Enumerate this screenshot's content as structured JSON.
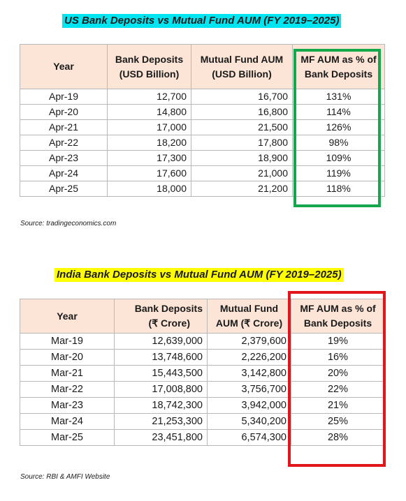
{
  "us": {
    "title": "US Bank Deposits vs Mutual Fund AUM (FY 2019–2025)",
    "headers": {
      "year": "Year",
      "bank_line1": "Bank Deposits",
      "bank_line2": "(USD Billion)",
      "mf_line1": "Mutual Fund AUM",
      "mf_line2": "(USD Billion)",
      "pct_line1": "MF AUM as % of",
      "pct_line2": "Bank Deposits"
    },
    "rows": [
      {
        "year": "Apr-19",
        "bank": "12,700",
        "mf": "16,700",
        "pct": "131%"
      },
      {
        "year": "Apr-20",
        "bank": "14,800",
        "mf": "16,800",
        "pct": "114%"
      },
      {
        "year": "Apr-21",
        "bank": "17,000",
        "mf": "21,500",
        "pct": "126%"
      },
      {
        "year": "Apr-22",
        "bank": "18,200",
        "mf": "17,800",
        "pct": "98%"
      },
      {
        "year": "Apr-23",
        "bank": "17,300",
        "mf": "18,900",
        "pct": "109%"
      },
      {
        "year": "Apr-24",
        "bank": "17,600",
        "mf": "21,000",
        "pct": "119%"
      },
      {
        "year": "Apr-25",
        "bank": "18,000",
        "mf": "21,200",
        "pct": "118%"
      }
    ],
    "source": "Source: tradingeconomics.com",
    "highlight_color": "#14a84c"
  },
  "india": {
    "title": "India Bank Deposits vs Mutual Fund AUM (FY 2019–2025)",
    "headers": {
      "year": "Year",
      "bank_line1": "Bank Deposits",
      "bank_line2": "(₹ Crore)",
      "mf_line1": "Mutual Fund",
      "mf_line2": "AUM (₹ Crore)",
      "pct_line1": "MF AUM as % of",
      "pct_line2": "Bank Deposits"
    },
    "rows": [
      {
        "year": "Mar-19",
        "bank": "12,639,000",
        "mf": "2,379,600",
        "pct": "19%"
      },
      {
        "year": "Mar-20",
        "bank": "13,748,600",
        "mf": "2,226,200",
        "pct": "16%"
      },
      {
        "year": "Mar-21",
        "bank": "15,443,500",
        "mf": "3,142,800",
        "pct": "20%"
      },
      {
        "year": "Mar-22",
        "bank": "17,008,800",
        "mf": "3,756,700",
        "pct": "22%"
      },
      {
        "year": "Mar-23",
        "bank": "18,742,300",
        "mf": "3,942,000",
        "pct": "21%"
      },
      {
        "year": "Mar-24",
        "bank": "21,253,300",
        "mf": "5,340,200",
        "pct": "25%"
      },
      {
        "year": "Mar-25",
        "bank": "23,451,800",
        "mf": "6,574,300",
        "pct": "28%"
      }
    ],
    "source": "Source: RBI & AMFI Website",
    "highlight_color": "#e3141b"
  }
}
